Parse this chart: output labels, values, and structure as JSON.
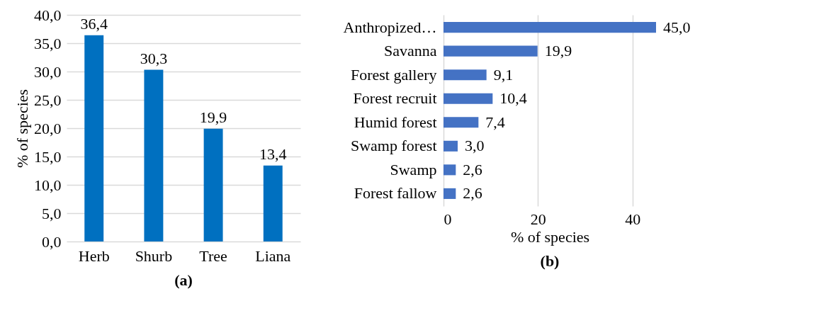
{
  "chart_data": [
    {
      "type": "bar",
      "categories": [
        "Herb",
        "Shurb",
        "Tree",
        "Liana"
      ],
      "values": [
        36.4,
        30.3,
        19.9,
        13.4
      ],
      "color": "#0070c0",
      "value_labels": [
        "36,4",
        "30,3",
        "19,9",
        "13,4"
      ],
      "ylabel": "% of species",
      "ylim": [
        0,
        40
      ],
      "yticks": [
        {
          "value": 0,
          "label": "0,0"
        },
        {
          "value": 5,
          "label": "5,0"
        },
        {
          "value": 10,
          "label": "10,0"
        },
        {
          "value": 15,
          "label": "15,0"
        },
        {
          "value": 20,
          "label": "20,0"
        },
        {
          "value": 25,
          "label": "25,0"
        },
        {
          "value": 30,
          "label": "30,0"
        },
        {
          "value": 35,
          "label": "35,0"
        },
        {
          "value": 40,
          "label": "40,0"
        }
      ],
      "grid": "y",
      "annotations": [
        "(a)"
      ]
    },
    {
      "type": "bar",
      "orientation": "horizontal",
      "categories": [
        "Anthropized…",
        "Savanna",
        "Forest gallery",
        "Forest recruit",
        "Humid forest",
        "Swamp forest",
        "Swamp",
        "Forest fallow"
      ],
      "values": [
        45.0,
        19.9,
        9.1,
        10.4,
        7.4,
        3.0,
        2.6,
        2.6
      ],
      "color": "#4472c4",
      "value_labels": [
        "45,0",
        "19,9",
        "9,1",
        "10,4",
        "7,4",
        "3,0",
        "2,6",
        "2,6"
      ],
      "xlabel": "% of species",
      "xlim": [
        0,
        45
      ],
      "xticks": [
        0,
        20,
        40
      ],
      "grid": "x",
      "annotations": [
        "(b)"
      ]
    }
  ]
}
